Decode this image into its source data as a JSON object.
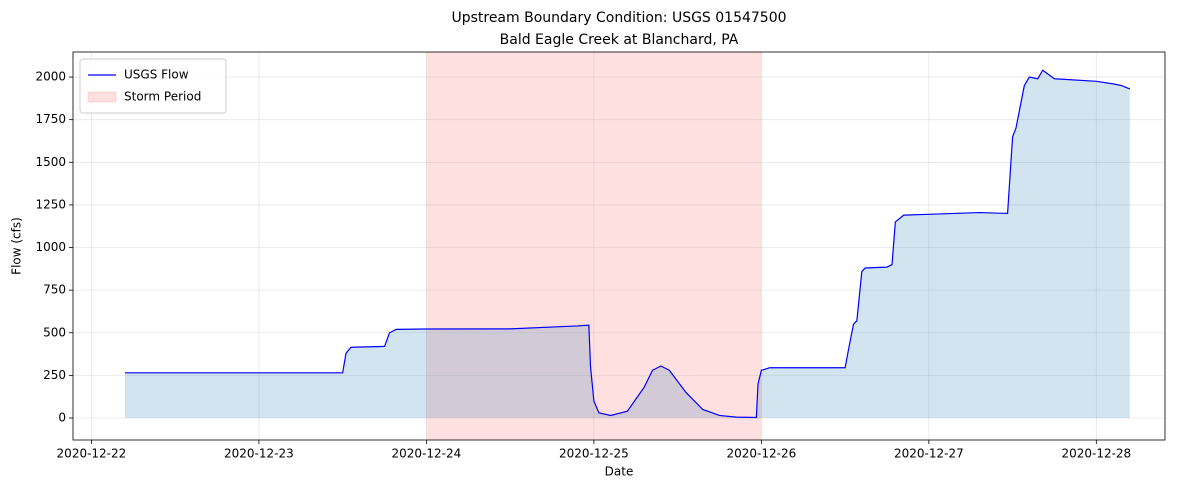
{
  "chart_data": {
    "type": "line",
    "title": "Upstream Boundary Condition: USGS 01547500",
    "subtitle": "Bald Eagle Creek at Blanchard, PA",
    "x_label": "Date",
    "y_label": "Flow (cfs)",
    "x": [
      22.2,
      23.5,
      23.52,
      23.55,
      23.75,
      23.78,
      23.82,
      24.0,
      24.5,
      24.9,
      24.97,
      24.98,
      25.0,
      25.03,
      25.1,
      25.2,
      25.3,
      25.35,
      25.4,
      25.45,
      25.55,
      25.65,
      25.75,
      25.85,
      25.97,
      25.98,
      26.0,
      26.05,
      26.5,
      26.52,
      26.55,
      26.57,
      26.6,
      26.62,
      26.75,
      26.78,
      26.8,
      26.85,
      27.0,
      27.3,
      27.47,
      27.5,
      27.52,
      27.57,
      27.6,
      27.65,
      27.68,
      27.75,
      28.0,
      28.1,
      28.15,
      28.2
    ],
    "series": [
      {
        "name": "USGS Flow",
        "color": "#0000ff",
        "fill_color": "#1f77b4",
        "values": [
          265,
          265,
          380,
          415,
          420,
          500,
          520,
          522,
          523,
          540,
          545,
          300,
          100,
          30,
          15,
          40,
          180,
          280,
          305,
          280,
          150,
          50,
          15,
          5,
          3,
          200,
          280,
          295,
          295,
          400,
          550,
          570,
          860,
          880,
          885,
          900,
          1150,
          1190,
          1195,
          1205,
          1200,
          1650,
          1700,
          1950,
          2000,
          1990,
          2040,
          1990,
          1975,
          1960,
          1950,
          1930
        ]
      }
    ],
    "spans": [
      {
        "name": "Storm Period",
        "color": "#ff0000",
        "x": [
          24,
          26
        ]
      }
    ],
    "xlim": [
      21.89,
      28.41
    ],
    "xticks": [
      {
        "value": 22,
        "label": "2020-12-22"
      },
      {
        "value": 23,
        "label": "2020-12-23"
      },
      {
        "value": 24,
        "label": "2020-12-24"
      },
      {
        "value": 25,
        "label": "2020-12-25"
      },
      {
        "value": 26,
        "label": "2020-12-26"
      },
      {
        "value": 27,
        "label": "2020-12-27"
      },
      {
        "value": 28,
        "label": "2020-12-28"
      }
    ],
    "ylim": [
      -129,
      2147
    ],
    "yticks": [
      0,
      250,
      500,
      750,
      1000,
      1250,
      1500,
      1750,
      2000
    ],
    "grid": true,
    "legend": "upper left"
  }
}
